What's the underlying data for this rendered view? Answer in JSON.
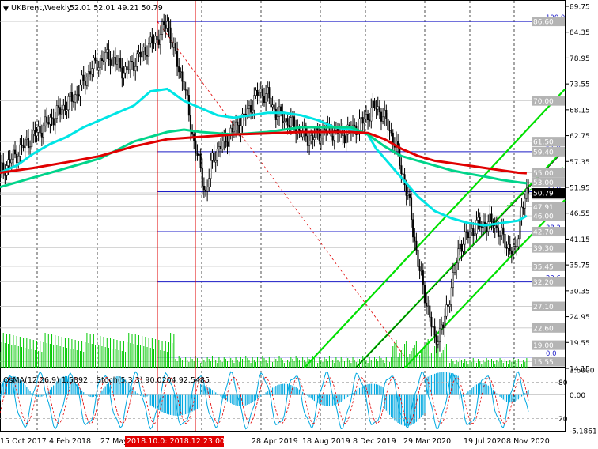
{
  "header": {
    "symbol": "UKBrent,Weekly",
    "ohlc": "52.01 52.01 49.21 50.79",
    "osma_legend": "OsMA(12,26,9) 1.5892",
    "stoch_legend": "Stoch(5,3,3) 90.0204 92.5485"
  },
  "chart_data": [
    {
      "type": "candlestick",
      "title": "UKBrent,Weekly",
      "ylim": [
        14.15,
        89.75
      ],
      "y_ticks": [
        "89.75",
        "84.35",
        "78.95",
        "73.55",
        "68.15",
        "62.75",
        "57.35",
        "51.95",
        "46.55",
        "41.15",
        "35.75",
        "30.35",
        "24.95",
        "19.55",
        "14.15"
      ],
      "price_labels": [
        {
          "value": 86.6,
          "text": "86.60",
          "color": "#b4b4b4"
        },
        {
          "value": 70.0,
          "text": "70.00",
          "color": "#b4b4b4"
        },
        {
          "value": 61.5,
          "text": "61.50",
          "color": "#b4b4b4"
        },
        {
          "value": 59.4,
          "text": "59.40",
          "color": "#b4b4b4"
        },
        {
          "value": 55.0,
          "text": "55.00",
          "color": "#b4b4b4"
        },
        {
          "value": 53.0,
          "text": "53.00",
          "color": "#b4b4b4"
        },
        {
          "value": 50.43,
          "text": "50.43",
          "color": "#b4b4b4"
        },
        {
          "value": 47.91,
          "text": "47.91",
          "color": "#b4b4b4"
        },
        {
          "value": 46.0,
          "text": "46.00",
          "color": "#b4b4b4"
        },
        {
          "value": 42.7,
          "text": "42.70",
          "color": "#b4b4b4"
        },
        {
          "value": 39.3,
          "text": "39.30",
          "color": "#b4b4b4"
        },
        {
          "value": 35.45,
          "text": "35.45",
          "color": "#b4b4b4"
        },
        {
          "value": 32.2,
          "text": "32.20",
          "color": "#b4b4b4"
        },
        {
          "value": 27.1,
          "text": "27.10",
          "color": "#b4b4b4"
        },
        {
          "value": 22.6,
          "text": "22.60",
          "color": "#b4b4b4"
        },
        {
          "value": 19.0,
          "text": "19.00",
          "color": "#b4b4b4"
        },
        {
          "value": 15.55,
          "text": "15.55",
          "color": "#b4b4b4"
        },
        {
          "value": 50.79,
          "text": "50.79",
          "color": "#000000"
        }
      ],
      "fibonacci": [
        {
          "level": "100.0",
          "price": 86.6
        },
        {
          "level": "61.8",
          "price": 59.4
        },
        {
          "level": "50.0",
          "price": 51.05
        },
        {
          "level": "38.2",
          "price": 42.7
        },
        {
          "level": "23.6",
          "price": 32.2
        },
        {
          "level": "0.0",
          "price": 16.5
        }
      ],
      "x_labels": [
        "15 Oct 2017",
        "4 Feb 2018",
        "27 May",
        "28 Apr 2019",
        "18 Aug 2019",
        "8 Dec 2019",
        "29 Mar 2020",
        "19 Jul 2020",
        "8 Nov 2020"
      ],
      "x_highlight": "2018.10.0: 2018.12.23 00:00",
      "series": [
        {
          "color": "#00e5e5",
          "points": [
            [
              0,
              55.0
            ],
            [
              10,
              56.5
            ],
            [
              20,
              59.0
            ],
            [
              30,
              61.0
            ],
            [
              40,
              62.5
            ],
            [
              50,
              64.5
            ],
            [
              60,
              66.0
            ],
            [
              70,
              67.5
            ],
            [
              80,
              69.0
            ],
            [
              90,
              72.0
            ],
            [
              100,
              72.5
            ],
            [
              110,
              70.0
            ],
            [
              120,
              68.5
            ],
            [
              130,
              67.0
            ],
            [
              140,
              66.5
            ],
            [
              150,
              67.0
            ],
            [
              160,
              67.5
            ],
            [
              170,
              67.5
            ],
            [
              180,
              67.0
            ],
            [
              190,
              66.0
            ],
            [
              200,
              64.5
            ],
            [
              210,
              64.0
            ],
            [
              220,
              63.0
            ],
            [
              225,
              60.0
            ],
            [
              230,
              58.0
            ],
            [
              240,
              54.0
            ],
            [
              250,
              50.0
            ],
            [
              260,
              47.0
            ],
            [
              270,
              45.5
            ],
            [
              280,
              44.5
            ],
            [
              290,
              44.0
            ],
            [
              300,
              44.5
            ],
            [
              310,
              45.0
            ],
            [
              315,
              46.0
            ]
          ]
        },
        {
          "color": "#00d48a",
          "points": [
            [
              0,
              52.0
            ],
            [
              20,
              54.0
            ],
            [
              40,
              56.0
            ],
            [
              60,
              58.0
            ],
            [
              80,
              61.5
            ],
            [
              100,
              63.5
            ],
            [
              110,
              64.0
            ],
            [
              120,
              63.5
            ],
            [
              140,
              63.0
            ],
            [
              160,
              63.5
            ],
            [
              180,
              64.5
            ],
            [
              200,
              64.5
            ],
            [
              210,
              64.5
            ],
            [
              220,
              63.0
            ],
            [
              230,
              60.5
            ],
            [
              240,
              58.5
            ],
            [
              250,
              57.5
            ],
            [
              260,
              56.5
            ],
            [
              270,
              55.5
            ],
            [
              280,
              54.8
            ],
            [
              290,
              54.2
            ],
            [
              300,
              53.5
            ],
            [
              310,
              53.0
            ],
            [
              315,
              52.8
            ]
          ]
        },
        {
          "color": "#e00000",
          "points": [
            [
              0,
              55.0
            ],
            [
              20,
              56.0
            ],
            [
              40,
              57.2
            ],
            [
              60,
              58.5
            ],
            [
              80,
              60.5
            ],
            [
              100,
              62.0
            ],
            [
              120,
              62.5
            ],
            [
              140,
              63.0
            ],
            [
              160,
              63.2
            ],
            [
              180,
              63.5
            ],
            [
              200,
              63.5
            ],
            [
              210,
              63.5
            ],
            [
              220,
              63.3
            ],
            [
              230,
              62.0
            ],
            [
              240,
              60.0
            ],
            [
              250,
              58.5
            ],
            [
              260,
              57.5
            ],
            [
              270,
              57.0
            ],
            [
              280,
              56.5
            ],
            [
              290,
              56.0
            ],
            [
              300,
              55.5
            ],
            [
              310,
              55.0
            ],
            [
              315,
              54.9
            ]
          ]
        }
      ],
      "candles_anchor": [
        [
          0,
          55.0
        ],
        [
          15,
          61.0
        ],
        [
          30,
          66.0
        ],
        [
          45,
          71.0
        ],
        [
          55,
          77.0
        ],
        [
          65,
          79.5
        ],
        [
          75,
          76.0
        ],
        [
          85,
          80.0
        ],
        [
          95,
          83.5
        ],
        [
          100,
          86.5
        ],
        [
          105,
          79.0
        ],
        [
          110,
          73.5
        ],
        [
          115,
          63.0
        ],
        [
          120,
          55.5
        ],
        [
          123,
          50.5
        ],
        [
          127,
          58.0
        ],
        [
          135,
          62.0
        ],
        [
          145,
          66.0
        ],
        [
          155,
          72.0
        ],
        [
          160,
          71.0
        ],
        [
          165,
          67.5
        ],
        [
          175,
          65.0
        ],
        [
          185,
          62.0
        ],
        [
          195,
          64.0
        ],
        [
          205,
          63.0
        ],
        [
          215,
          65.0
        ],
        [
          225,
          69.0
        ],
        [
          232,
          65.0
        ],
        [
          238,
          59.0
        ],
        [
          245,
          48.0
        ],
        [
          250,
          36.0
        ],
        [
          255,
          28.0
        ],
        [
          260,
          20.0
        ],
        [
          265,
          23.0
        ],
        [
          270,
          31.0
        ],
        [
          275,
          40.0
        ],
        [
          285,
          44.0
        ],
        [
          295,
          44.5
        ],
        [
          303,
          40.0
        ],
        [
          308,
          38.0
        ],
        [
          312,
          47.5
        ],
        [
          316,
          50.79
        ]
      ]
    },
    {
      "type": "bar",
      "title": "OsMA(12,26,9) 1.5892",
      "ylim": [
        -5.1861,
        3.6
      ],
      "y_ticks": [
        "3.6000",
        "0.00",
        "-5.1861"
      ]
    },
    {
      "type": "line",
      "title": "Stoch(5,3,3) 90.0204 92.5485",
      "ylim": [
        0,
        100
      ],
      "y_ticks": [
        "80",
        "20"
      ]
    }
  ]
}
